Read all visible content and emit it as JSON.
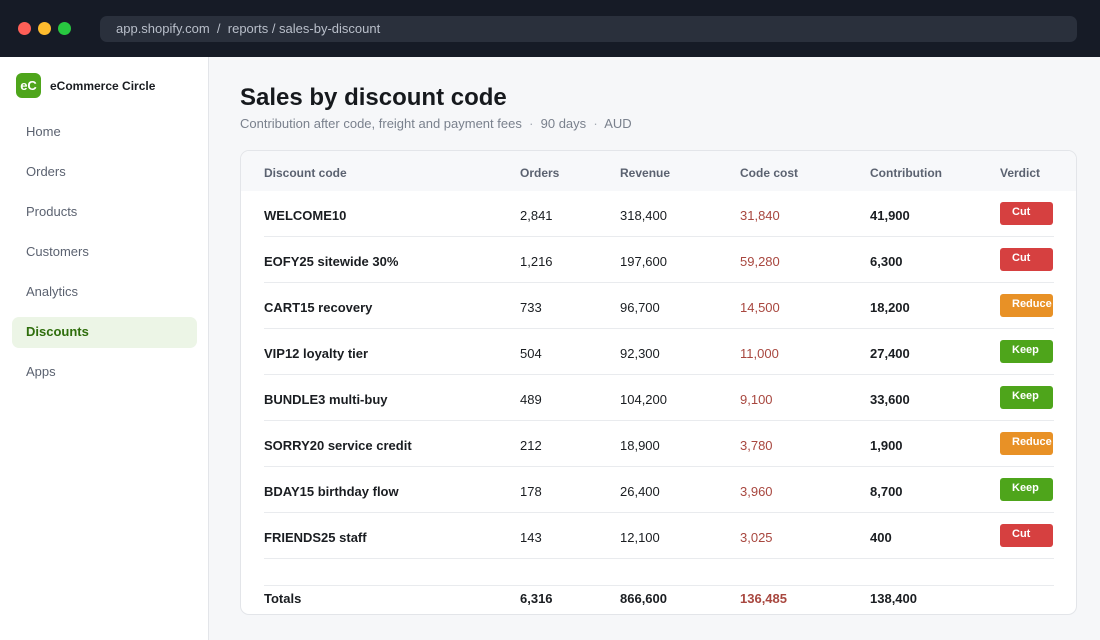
{
  "browser": {
    "url": "app.shopify.com  /  reports / sales-by-discount"
  },
  "sidebar": {
    "brand_logo": "eC",
    "brand_name": "eCommerce Circle",
    "items": [
      {
        "label": "Home"
      },
      {
        "label": "Orders"
      },
      {
        "label": "Products"
      },
      {
        "label": "Customers"
      },
      {
        "label": "Analytics"
      },
      {
        "label": "Discounts",
        "active": true
      },
      {
        "label": "Apps"
      }
    ]
  },
  "main": {
    "title": "Sales by discount code",
    "subtitle_main": "Contribution after code, freight and payment fees",
    "subtitle_period": "90 days",
    "subtitle_currency": "AUD"
  },
  "table": {
    "headers": {
      "code": "Discount code",
      "orders": "Orders",
      "revenue": "Revenue",
      "cost": "Code cost",
      "contribution": "Contribution",
      "verdict": "Verdict"
    },
    "rows": [
      {
        "code": "WELCOME10",
        "orders": "2,841",
        "revenue": "318,400",
        "cost": "31,840",
        "contribution": "41,900",
        "verdict": "Cut"
      },
      {
        "code": "EOFY25 sitewide 30%",
        "orders": "1,216",
        "revenue": "197,600",
        "cost": "59,280",
        "contribution": "6,300",
        "verdict": "Cut"
      },
      {
        "code": "CART15 recovery",
        "orders": "733",
        "revenue": "96,700",
        "cost": "14,500",
        "contribution": "18,200",
        "verdict": "Reduce"
      },
      {
        "code": "VIP12 loyalty tier",
        "orders": "504",
        "revenue": "92,300",
        "cost": "11,000",
        "contribution": "27,400",
        "verdict": "Keep"
      },
      {
        "code": "BUNDLE3 multi-buy",
        "orders": "489",
        "revenue": "104,200",
        "cost": "9,100",
        "contribution": "33,600",
        "verdict": "Keep"
      },
      {
        "code": "SORRY20 service credit",
        "orders": "212",
        "revenue": "18,900",
        "cost": "3,780",
        "contribution": "1,900",
        "verdict": "Reduce"
      },
      {
        "code": "BDAY15 birthday flow",
        "orders": "178",
        "revenue": "26,400",
        "cost": "3,960",
        "contribution": "8,700",
        "verdict": "Keep"
      },
      {
        "code": "FRIENDS25 staff",
        "orders": "143",
        "revenue": "12,100",
        "cost": "3,025",
        "contribution": "400",
        "verdict": "Cut"
      }
    ],
    "totals": {
      "label": "Totals",
      "orders": "6,316",
      "revenue": "866,600",
      "cost": "136,485",
      "contribution": "138,400"
    }
  },
  "colors": {
    "cut": "#d64040",
    "reduce": "#e89126",
    "keep": "#4ea51b",
    "accent": "#4ea51b",
    "cost_text": "#a8473f"
  }
}
